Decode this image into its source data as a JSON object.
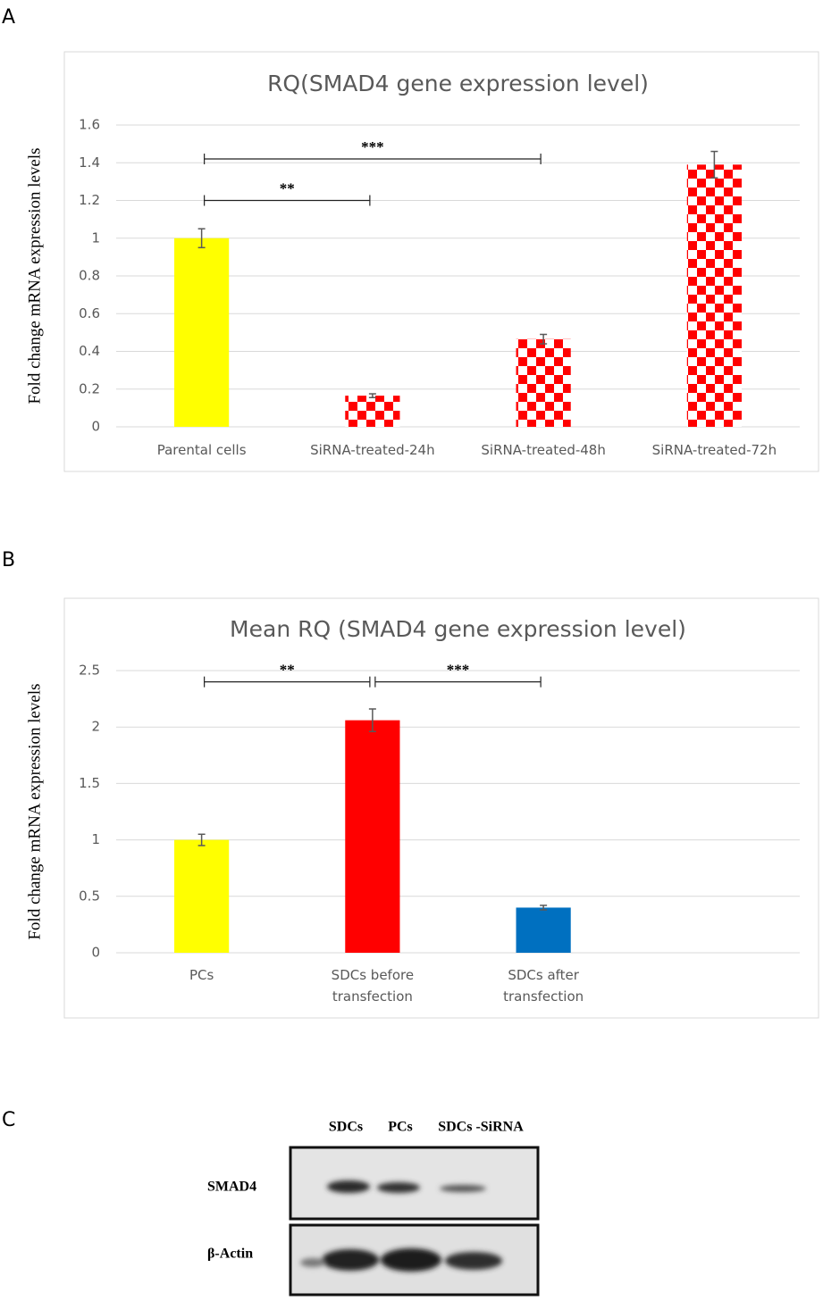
{
  "panels": [
    "A",
    "B",
    "C"
  ],
  "chart_data": [
    {
      "type": "bar",
      "title": "RQ(SMAD4 gene expression level)",
      "y_label": "Fold change mRNA expression levels",
      "categories": [
        "Parental cells",
        "SiRNA-treated-24h",
        "SiRNA-treated-48h",
        "SiRNA-treated-72h"
      ],
      "values": [
        1,
        0.165,
        0.465,
        1.39
      ],
      "errors": [
        0.05,
        0.01,
        0.025,
        0.07
      ],
      "colors": [
        "#ffff00",
        "#ff0000",
        "#ff0000",
        "#ff0000"
      ],
      "fills": [
        "solid",
        "checker",
        "checker",
        "checker"
      ],
      "ylim": [
        0,
        1.6
      ],
      "yticks": [
        0,
        0.2,
        0.4,
        0.6,
        0.8,
        1,
        1.2,
        1.4,
        1.6
      ],
      "grid": true,
      "annotations": [
        {
          "text": "**",
          "from": 0,
          "to": 1,
          "y": 1.2
        },
        {
          "text": "***",
          "from": 0,
          "to": 2,
          "y": 1.42
        }
      ]
    },
    {
      "type": "bar",
      "title": "Mean RQ (SMAD4 gene expression level)",
      "y_label": "Fold change mRNA expression levels",
      "categories": [
        "PCs",
        "SDCs before transfection",
        "SDCs after transfection",
        null
      ],
      "values": [
        1,
        2.06,
        0.4,
        null
      ],
      "errors": [
        0.05,
        0.1,
        0.02,
        null
      ],
      "colors": [
        "#ffff00",
        "#ff0000",
        "#0070c0",
        null
      ],
      "fills": [
        "solid",
        "solid",
        "solid",
        null
      ],
      "ylim": [
        0,
        2.5
      ],
      "yticks": [
        0,
        0.5,
        1,
        1.5,
        2,
        2.5
      ],
      "grid": true,
      "annotations": [
        {
          "text": "**",
          "from": 0,
          "to": 1,
          "y": 2.4
        },
        {
          "text": "***",
          "from": 1,
          "to": 2,
          "y": 2.4
        }
      ]
    }
  ],
  "blot": {
    "lanes": [
      "SDCs",
      "PCs",
      "SDCs -SiRNA"
    ],
    "rows": [
      "SMAD4",
      "β-Actin"
    ]
  }
}
